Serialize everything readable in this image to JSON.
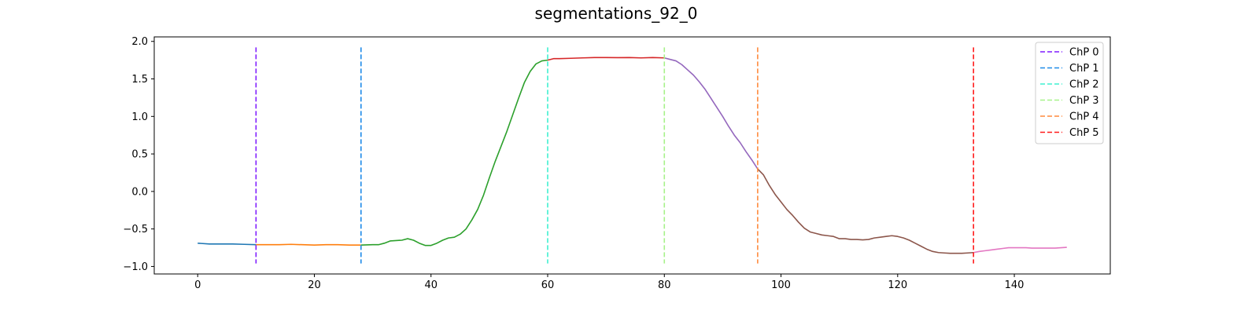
{
  "chart_data": {
    "type": "line",
    "title": "segmentations_92_0",
    "xlabel": "",
    "ylabel": "",
    "xlim": [
      -7.45,
      156.45
    ],
    "ylim": [
      -1.1,
      2.06
    ],
    "x_ticks": [
      0,
      20,
      40,
      60,
      80,
      100,
      120,
      140
    ],
    "y_ticks": [
      -1.0,
      -0.5,
      0.0,
      0.5,
      1.0,
      1.5,
      2.0
    ],
    "x_tick_labels": [
      "0",
      "20",
      "40",
      "60",
      "80",
      "100",
      "120",
      "140"
    ],
    "y_tick_labels": [
      "−1.0",
      "−0.5",
      "0.0",
      "0.5",
      "1.0",
      "1.5",
      "2.0"
    ],
    "grid": false,
    "legend_position": "top-right",
    "segments": [
      {
        "color": "#1f77b4",
        "points": [
          [
            0,
            -0.69
          ],
          [
            2,
            -0.7
          ],
          [
            4,
            -0.7
          ],
          [
            6,
            -0.7
          ],
          [
            8,
            -0.705
          ],
          [
            10,
            -0.71
          ]
        ]
      },
      {
        "color": "#ff7f0e",
        "points": [
          [
            10,
            -0.71
          ],
          [
            12,
            -0.71
          ],
          [
            14,
            -0.71
          ],
          [
            16,
            -0.705
          ],
          [
            18,
            -0.71
          ],
          [
            20,
            -0.715
          ],
          [
            22,
            -0.71
          ],
          [
            24,
            -0.71
          ],
          [
            26,
            -0.715
          ],
          [
            28,
            -0.715
          ]
        ]
      },
      {
        "color": "#2ca02c",
        "points": [
          [
            28,
            -0.715
          ],
          [
            30,
            -0.71
          ],
          [
            31,
            -0.71
          ],
          [
            32,
            -0.69
          ],
          [
            33,
            -0.66
          ],
          [
            35,
            -0.65
          ],
          [
            36,
            -0.63
          ],
          [
            37,
            -0.65
          ],
          [
            38,
            -0.69
          ],
          [
            39,
            -0.72
          ],
          [
            40,
            -0.72
          ],
          [
            41,
            -0.69
          ],
          [
            42,
            -0.65
          ],
          [
            43,
            -0.62
          ],
          [
            44,
            -0.61
          ],
          [
            45,
            -0.57
          ],
          [
            46,
            -0.5
          ],
          [
            47,
            -0.38
          ],
          [
            48,
            -0.24
          ],
          [
            49,
            -0.05
          ],
          [
            50,
            0.18
          ],
          [
            51,
            0.4
          ],
          [
            52,
            0.6
          ],
          [
            53,
            0.8
          ],
          [
            54,
            1.02
          ],
          [
            55,
            1.24
          ],
          [
            56,
            1.45
          ],
          [
            57,
            1.6
          ],
          [
            58,
            1.7
          ],
          [
            59,
            1.74
          ],
          [
            60,
            1.75
          ]
        ]
      },
      {
        "color": "#d62728",
        "points": [
          [
            60,
            1.75
          ],
          [
            61,
            1.77
          ],
          [
            62,
            1.77
          ],
          [
            64,
            1.775
          ],
          [
            66,
            1.78
          ],
          [
            68,
            1.785
          ],
          [
            70,
            1.785
          ],
          [
            72,
            1.783
          ],
          [
            74,
            1.785
          ],
          [
            76,
            1.78
          ],
          [
            78,
            1.785
          ],
          [
            80,
            1.78
          ]
        ]
      },
      {
        "color": "#9467bd",
        "points": [
          [
            80,
            1.78
          ],
          [
            81,
            1.76
          ],
          [
            82,
            1.74
          ],
          [
            83,
            1.69
          ],
          [
            84,
            1.62
          ],
          [
            85,
            1.55
          ],
          [
            86,
            1.46
          ],
          [
            87,
            1.36
          ],
          [
            88,
            1.24
          ],
          [
            89,
            1.12
          ],
          [
            90,
            1.0
          ],
          [
            91,
            0.87
          ],
          [
            92,
            0.75
          ],
          [
            93,
            0.65
          ],
          [
            94,
            0.53
          ],
          [
            95,
            0.42
          ],
          [
            96,
            0.3
          ]
        ]
      },
      {
        "color": "#8c564b",
        "points": [
          [
            96,
            0.3
          ],
          [
            97,
            0.22
          ],
          [
            98,
            0.08
          ],
          [
            99,
            -0.04
          ],
          [
            100,
            -0.14
          ],
          [
            101,
            -0.24
          ],
          [
            102,
            -0.32
          ],
          [
            103,
            -0.41
          ],
          [
            104,
            -0.49
          ],
          [
            105,
            -0.54
          ],
          [
            106,
            -0.56
          ],
          [
            107,
            -0.58
          ],
          [
            108,
            -0.59
          ],
          [
            109,
            -0.6
          ],
          [
            110,
            -0.63
          ],
          [
            111,
            -0.63
          ],
          [
            112,
            -0.64
          ],
          [
            113,
            -0.64
          ],
          [
            114,
            -0.645
          ],
          [
            115,
            -0.64
          ],
          [
            116,
            -0.62
          ],
          [
            117,
            -0.61
          ],
          [
            118,
            -0.6
          ],
          [
            119,
            -0.59
          ],
          [
            120,
            -0.6
          ],
          [
            121,
            -0.62
          ],
          [
            122,
            -0.65
          ],
          [
            123,
            -0.69
          ],
          [
            124,
            -0.73
          ],
          [
            125,
            -0.77
          ],
          [
            126,
            -0.8
          ],
          [
            127,
            -0.815
          ],
          [
            128,
            -0.82
          ],
          [
            129,
            -0.825
          ],
          [
            130,
            -0.825
          ],
          [
            131,
            -0.825
          ],
          [
            132,
            -0.82
          ],
          [
            133,
            -0.815
          ]
        ]
      },
      {
        "color": "#e377c2",
        "points": [
          [
            133,
            -0.815
          ],
          [
            134,
            -0.8
          ],
          [
            135,
            -0.79
          ],
          [
            136,
            -0.78
          ],
          [
            137,
            -0.77
          ],
          [
            138,
            -0.76
          ],
          [
            139,
            -0.75
          ],
          [
            140,
            -0.75
          ],
          [
            141,
            -0.75
          ],
          [
            142,
            -0.75
          ],
          [
            143,
            -0.755
          ],
          [
            144,
            -0.755
          ],
          [
            145,
            -0.755
          ],
          [
            146,
            -0.755
          ],
          [
            147,
            -0.755
          ],
          [
            148,
            -0.75
          ],
          [
            149,
            -0.745
          ]
        ]
      }
    ],
    "changepoints": [
      {
        "name": "ChP 0",
        "x": 10,
        "color": "#7f1cff"
      },
      {
        "name": "ChP 1",
        "x": 28,
        "color": "#1f8be8"
      },
      {
        "name": "ChP 2",
        "x": 60,
        "color": "#3ff0d1"
      },
      {
        "name": "ChP 3",
        "x": 80,
        "color": "#a7f28a"
      },
      {
        "name": "ChP 4",
        "x": 96,
        "color": "#ff8a3d"
      },
      {
        "name": "ChP 5",
        "x": 133,
        "color": "#ff1a1a"
      }
    ],
    "changepoint_range": [
      -0.96,
      1.92
    ]
  }
}
